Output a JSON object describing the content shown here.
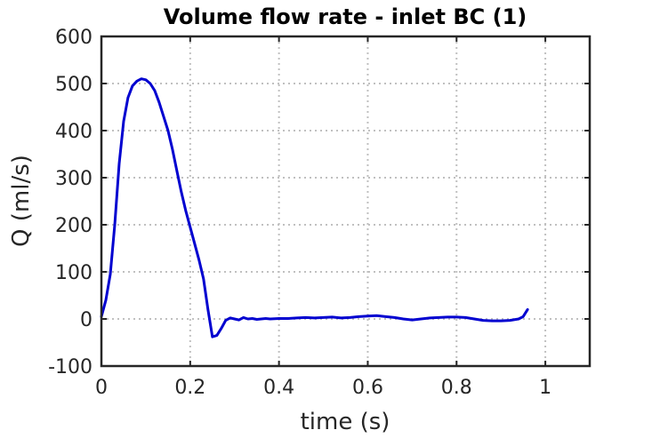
{
  "chart_data": {
    "type": "line",
    "title": "Volume flow rate - inlet BC (1)",
    "xlabel": "time (s)",
    "ylabel": "Q (ml/s)",
    "xlim": [
      0,
      1.1
    ],
    "ylim": [
      -100,
      600
    ],
    "xticks": [
      0,
      0.2,
      0.4,
      0.6,
      0.8,
      1
    ],
    "xtick_labels": [
      "0",
      "0.2",
      "0.4",
      "0.6",
      "0.8",
      "1"
    ],
    "yticks": [
      -100,
      0,
      100,
      200,
      300,
      400,
      500,
      600
    ],
    "ytick_labels": [
      "-100",
      "0",
      "100",
      "200",
      "300",
      "400",
      "500",
      "600"
    ],
    "grid": true,
    "colors": {
      "line": "#0000d0",
      "grid": "#c0c0c0",
      "frame": "#262626"
    },
    "series": [
      {
        "x": [
          0,
          0.01,
          0.02,
          0.03,
          0.04,
          0.05,
          0.06,
          0.07,
          0.08,
          0.09,
          0.1,
          0.11,
          0.12,
          0.13,
          0.14,
          0.15,
          0.16,
          0.17,
          0.18,
          0.19,
          0.2,
          0.21,
          0.22,
          0.23,
          0.24,
          0.25,
          0.26,
          0.27,
          0.28,
          0.29,
          0.3,
          0.31,
          0.32,
          0.33,
          0.34,
          0.35,
          0.36,
          0.37,
          0.38,
          0.4,
          0.42,
          0.44,
          0.46,
          0.48,
          0.5,
          0.52,
          0.54,
          0.56,
          0.58,
          0.6,
          0.62,
          0.64,
          0.66,
          0.68,
          0.7,
          0.72,
          0.74,
          0.76,
          0.78,
          0.8,
          0.82,
          0.84,
          0.86,
          0.88,
          0.9,
          0.92,
          0.94,
          0.95,
          0.96
        ],
        "values": [
          5,
          40,
          95,
          200,
          330,
          420,
          470,
          495,
          505,
          510,
          508,
          500,
          485,
          460,
          430,
          400,
          360,
          315,
          270,
          230,
          195,
          160,
          125,
          85,
          20,
          -38,
          -35,
          -20,
          -3,
          2,
          0,
          -2,
          3,
          0,
          1,
          -1,
          0,
          1,
          0,
          1,
          1,
          2,
          3,
          2,
          3,
          4,
          2,
          3,
          5,
          6,
          7,
          5,
          3,
          0,
          -2,
          0,
          2,
          3,
          4,
          4,
          3,
          0,
          -3,
          -4,
          -4,
          -3,
          0,
          5,
          20
        ]
      }
    ]
  }
}
